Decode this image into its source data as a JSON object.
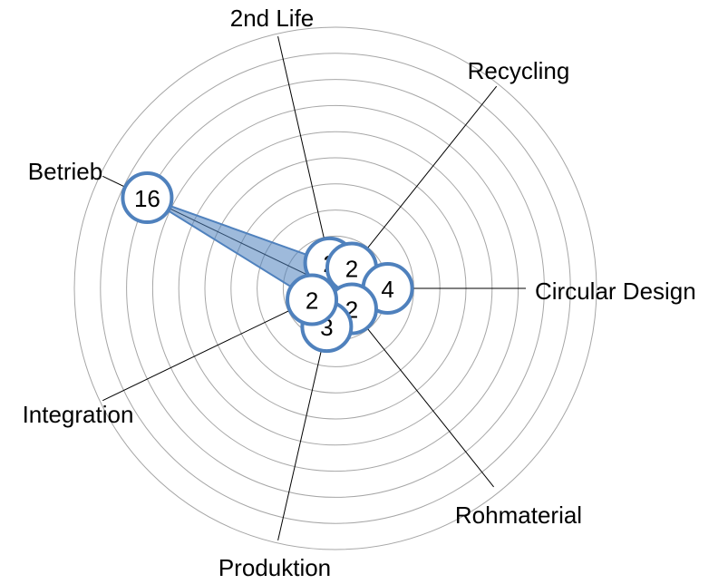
{
  "chart_data": {
    "type": "radar",
    "categories": [
      "2nd Life",
      "Recycling",
      "Circular Design",
      "Rohmaterial",
      "Produktion",
      "Integration",
      "Betrieb"
    ],
    "values": [
      2,
      2,
      4,
      2,
      3,
      2,
      16
    ],
    "color": "#4f81bd",
    "ylim": [
      0,
      20
    ],
    "yticks": [
      0,
      2,
      4,
      6,
      8,
      10,
      12,
      14,
      16,
      18,
      20
    ],
    "grid": true
  }
}
